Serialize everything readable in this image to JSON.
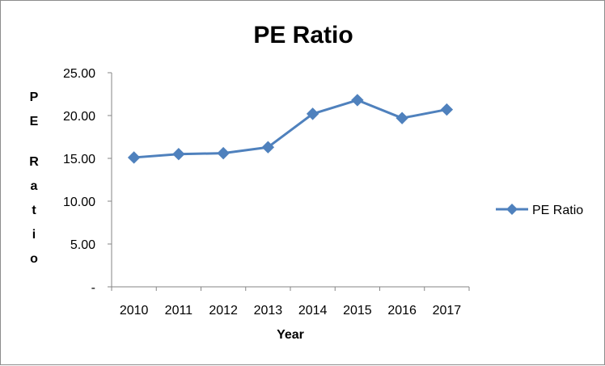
{
  "chart_data": {
    "type": "line",
    "title": "PE Ratio",
    "xlabel": "Year",
    "ylabel": "PE Ratio",
    "categories": [
      "2010",
      "2011",
      "2012",
      "2013",
      "2014",
      "2015",
      "2016",
      "2017"
    ],
    "series": [
      {
        "name": "PE Ratio",
        "color": "#4f81bd",
        "marker": "diamond",
        "values": [
          15.1,
          15.5,
          15.6,
          16.3,
          20.2,
          21.8,
          19.7,
          20.7
        ]
      }
    ],
    "ylim": [
      0,
      25
    ],
    "y_ticks": [
      0,
      5,
      10,
      15,
      20,
      25
    ],
    "y_tick_labels": [
      "-",
      "5.00",
      "10.00",
      "15.00",
      "20.00",
      "25.00"
    ],
    "grid": false,
    "legend_position": "right"
  }
}
